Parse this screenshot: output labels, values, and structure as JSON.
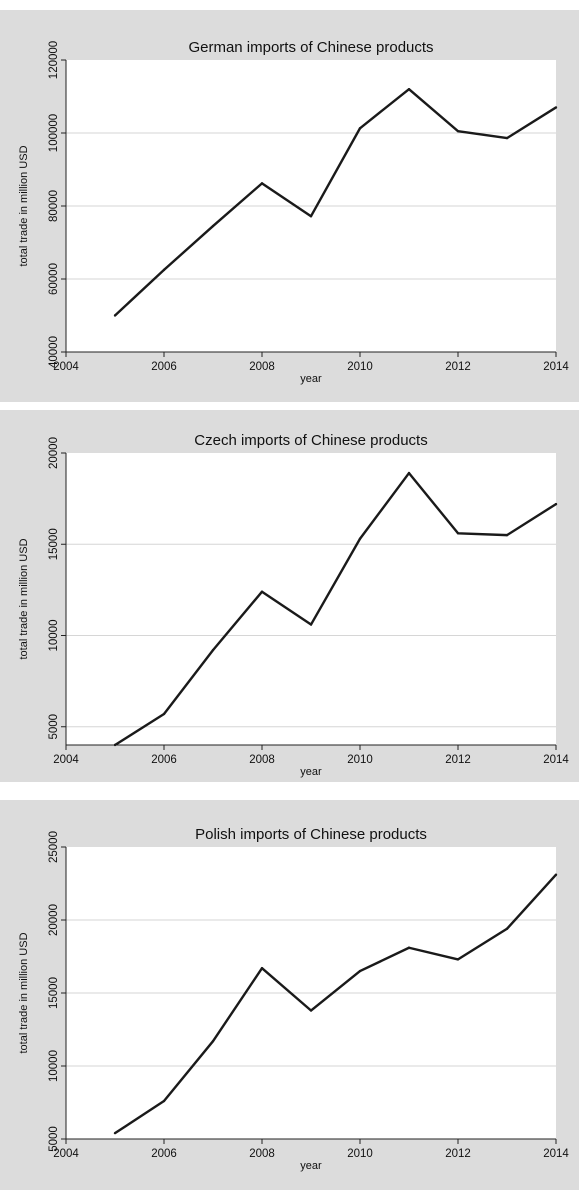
{
  "chart_data": [
    {
      "type": "line",
      "title": "German imports of Chinese products",
      "xlabel": "year",
      "ylabel": "total trade in million USD",
      "xlim": [
        2004,
        2014
      ],
      "ylim": [
        40000,
        120000
      ],
      "xticks": [
        2004,
        2006,
        2008,
        2010,
        2012,
        2014
      ],
      "yticks": [
        40000,
        60000,
        80000,
        100000,
        120000
      ],
      "grid": true,
      "series": [
        {
          "x": [
            2005,
            2006,
            2007,
            2008,
            2009,
            2010,
            2011,
            2012,
            2013,
            2014
          ],
          "values": [
            50000,
            62500,
            74500,
            86200,
            77200,
            101300,
            112000,
            100500,
            98600,
            107000
          ]
        }
      ]
    },
    {
      "type": "line",
      "title": "Czech imports of Chinese products",
      "xlabel": "year",
      "ylabel": "total trade in million USD",
      "xlim": [
        2004,
        2014
      ],
      "ylim": [
        4000,
        20000
      ],
      "xticks": [
        2004,
        2006,
        2008,
        2010,
        2012,
        2014
      ],
      "yticks": [
        5000,
        10000,
        15000,
        20000
      ],
      "grid": true,
      "series": [
        {
          "x": [
            2005,
            2006,
            2007,
            2008,
            2009,
            2010,
            2011,
            2012,
            2013,
            2014
          ],
          "values": [
            4000,
            5700,
            9200,
            12400,
            10600,
            15300,
            18900,
            15600,
            15500,
            17200
          ]
        }
      ]
    },
    {
      "type": "line",
      "title": "Polish imports of Chinese products",
      "xlabel": "year",
      "ylabel": "total trade in million USD",
      "xlim": [
        2004,
        2014
      ],
      "ylim": [
        5000,
        25000
      ],
      "xticks": [
        2004,
        2006,
        2008,
        2010,
        2012,
        2014
      ],
      "yticks": [
        5000,
        10000,
        15000,
        20000,
        25000
      ],
      "grid": true,
      "series": [
        {
          "x": [
            2005,
            2006,
            2007,
            2008,
            2009,
            2010,
            2011,
            2012,
            2013,
            2014
          ],
          "values": [
            5400,
            7600,
            11700,
            16700,
            13800,
            16500,
            18100,
            17300,
            19400,
            23100
          ]
        }
      ]
    }
  ]
}
